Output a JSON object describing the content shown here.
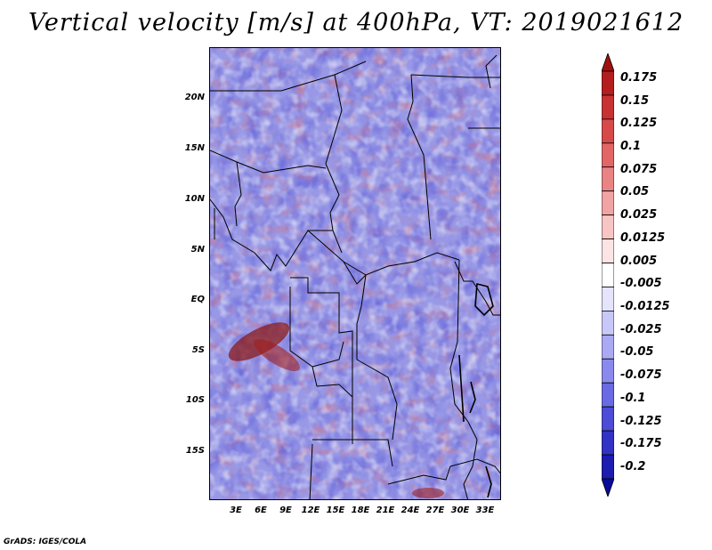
{
  "title": "Vertical velocity [m/s] at 400hPa, VT: 2019021612",
  "map": {
    "variable": "vertical velocity",
    "units": "m/s",
    "pressure_level": "400hPa",
    "valid_time": "2019021612",
    "lat_labels": [
      "20N",
      "15N",
      "10N",
      "5N",
      "EQ",
      "5S",
      "10S",
      "15S"
    ],
    "lon_labels": [
      "3E",
      "6E",
      "9E",
      "12E",
      "15E",
      "18E",
      "21E",
      "24E",
      "27E",
      "30E",
      "33E"
    ]
  },
  "colorbar": {
    "labels": [
      "0.175",
      "0.15",
      "0.125",
      "0.1",
      "0.075",
      "0.05",
      "0.025",
      "0.0125",
      "0.005",
      "-0.005",
      "-0.0125",
      "-0.025",
      "-0.05",
      "-0.075",
      "-0.1",
      "-0.125",
      "-0.175",
      "-0.2"
    ],
    "colors": [
      "#a01010",
      "#b41e1e",
      "#c83232",
      "#d84a4a",
      "#e26666",
      "#ea8484",
      "#f2a4a4",
      "#f8c4c4",
      "#fce4e4",
      "#ffffff",
      "#e4e4fc",
      "#c8c8f8",
      "#aaaaf4",
      "#8a8aee",
      "#6a6ae4",
      "#4c4cd8",
      "#3232c4",
      "#1c1cb0",
      "#0a0a98"
    ]
  },
  "credit": "GrADS: IGES/COLA"
}
